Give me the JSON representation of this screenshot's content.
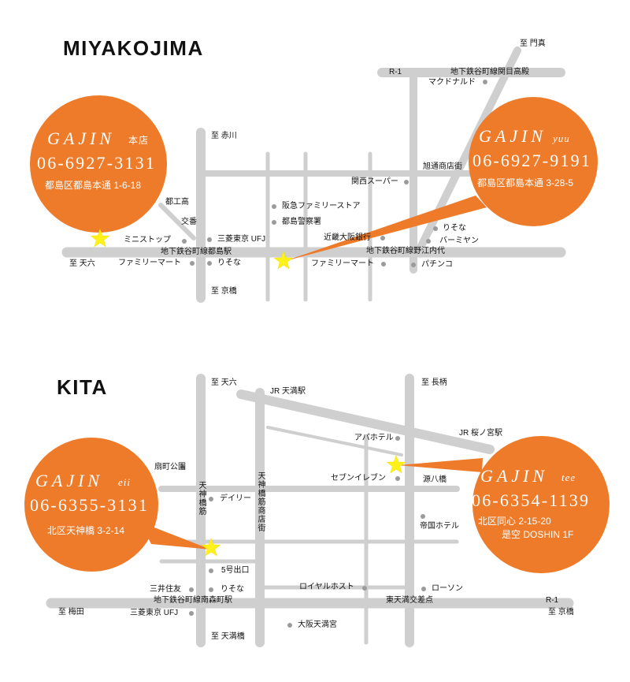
{
  "miyakojima": {
    "title": "MIYAKOJIMA",
    "shop_honten": {
      "name": "GAJIN",
      "tag": "本店",
      "phone": "06-6927-3131",
      "address": "都島区都島本通 1-6-18"
    },
    "shop_yuu": {
      "name": "GAJIN",
      "tag": "yuu",
      "phone": "06-6927-9191",
      "address": "都島区都島本通 3-28-5"
    },
    "labels": {
      "to_kadoma": "至 門真",
      "r1": "R-1",
      "sekime_takadono_station": "地下鉄谷町線関目高殿",
      "mcdonalds": "マクドナルド",
      "asahi_shotengai": "旭通商店街",
      "kansai_super": "関西スーパー",
      "hankyu_family_store": "阪急ファミリーストア",
      "police_station": "都島警察署",
      "kinki_osaka_bank": "近畿大阪銀行",
      "noe_uchindai_station": "地下鉄谷町線野江内代",
      "familymart_east": "ファミリーマート",
      "resona_east": "りそな",
      "bamiyan": "バーミヤン",
      "pachinko": "パチンコ",
      "to_akagawa": "至 赤川",
      "toko": "都工高",
      "koban": "交番",
      "ministop": "ミニストップ",
      "mufg": "三菱東京 UFJ",
      "miyakojima_station": "地下鉄谷町線都島駅",
      "to_tenroku": "至 天六",
      "familymart_west": "ファミリーマート",
      "resona_west": "りそな",
      "to_kyobashi": "至 京橋"
    }
  },
  "kita": {
    "title": "KITA",
    "shop_eii": {
      "name": "GAJIN",
      "tag": "eii",
      "phone": "06-6355-3131",
      "address": "北区天神橋 3-2-14"
    },
    "shop_tee": {
      "name": "GAJIN",
      "tag": "tee",
      "phone": "06-6354-1139",
      "address": "北区同心 2-15-20",
      "building": "是空 DOSHIN 1F"
    },
    "labels": {
      "to_tenroku": "至 天六",
      "jr_temma": "JR 天満駅",
      "to_nagara": "至 長柄",
      "jr_sakuranomiya": "JR 桜ノ宮駅",
      "apa_hotel": "アパホテル",
      "ogimachi_park": "扇町公園",
      "seven_eleven": "セブンイレブン",
      "genpachi_bridge": "源八橋",
      "tenjinbashisuji": "天神橋筋",
      "tenjinbashisuji_shotengai": "天神橋筋商店街",
      "daily": "デイリー",
      "imperial_hotel": "帝国ホテル",
      "exit_5": "5号出口",
      "smbc": "三井住友",
      "resona": "りそな",
      "royal_host": "ロイヤルホスト",
      "lawson": "ローソン",
      "minamimorimachi_station": "地下鉄谷町線南森町駅",
      "higashi_temma_crossing": "東天満交差点",
      "r1": "R-1",
      "to_umeda": "至 梅田",
      "mufg": "三菱東京 UFJ",
      "to_kyobashi": "至 京橋",
      "osaka_temmangu": "大阪天満宮",
      "to_tenmabashi": "至 天満橋"
    }
  },
  "colors": {
    "shop_circle": "#ee7b2a",
    "road": "#cfcfcf",
    "star": "#fff21a",
    "marker": "#9b9b9b"
  },
  "icons": {
    "shop_location": "star-icon",
    "landmark": "dot-marker"
  }
}
